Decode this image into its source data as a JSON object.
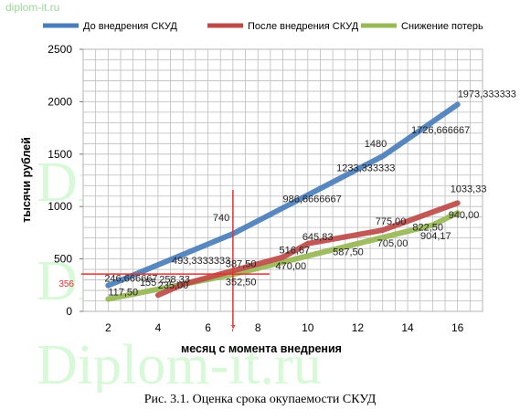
{
  "watermark": {
    "small": "diplom-it.ru",
    "large": "Diplom-it.ru"
  },
  "caption": "Рис. 3.1. Оценка срока окупаемости СКУД",
  "chart_data": {
    "type": "line",
    "title": "",
    "xlabel": "месяц  с момента  внедрения",
    "ylabel": "тысячи  рублей",
    "xlim": [
      1,
      17
    ],
    "ylim": [
      0,
      2500
    ],
    "x_ticks": [
      2,
      4,
      6,
      8,
      10,
      12,
      14,
      16
    ],
    "x_tick_labels": [
      "2",
      "4",
      "6",
      "8",
      "10",
      "12",
      "14",
      "16"
    ],
    "y_ticks": [
      0,
      500,
      1000,
      1500,
      2000,
      2500
    ],
    "y_tick_labels": [
      "0",
      "500",
      "1000",
      "1500",
      "2000",
      "2500"
    ],
    "grid": true,
    "legend_position": "top",
    "series": [
      {
        "name": "До внедрения СКУД",
        "color": "#4a7ebb",
        "x": [
          2,
          7,
          9,
          11,
          13,
          16
        ],
        "y": [
          246.67,
          740,
          986.67,
          1233.33,
          1480,
          1973.33
        ],
        "labels": [
          "246,666667",
          "740",
          "986,6666667",
          "1233,333333",
          "1480",
          "1973,333333"
        ]
      },
      {
        "name": "После внедрения СКУД",
        "color": "#be4b48",
        "x": [
          4,
          5,
          7,
          9,
          10,
          13,
          16
        ],
        "y": [
          155,
          258.33,
          387.5,
          516.67,
          645.83,
          775,
          1033.33
        ],
        "labels": [
          "155",
          "258,33",
          "387,50",
          "516,67",
          "645,83",
          "775,00",
          "1033,33"
        ]
      },
      {
        "name": "Снижение потерь",
        "color": "#98b954",
        "x": [
          2,
          4.5,
          7,
          9,
          11,
          13,
          15,
          16
        ],
        "y": [
          117.5,
          235,
          352.5,
          470,
          587.5,
          705,
          822.5,
          940
        ],
        "labels": [
          "117,50",
          "235,00",
          "352,50",
          "470,00",
          "587,50",
          "705,00",
          "822,50",
          "940,00"
        ]
      }
    ],
    "extra_labels": [
      "1726,666667",
      "904,17",
      "493,3333333"
    ],
    "annotations": [
      {
        "text": "7",
        "axis": "x",
        "value": 7
      },
      {
        "text": "356",
        "axis": "y",
        "value": 356
      }
    ]
  }
}
